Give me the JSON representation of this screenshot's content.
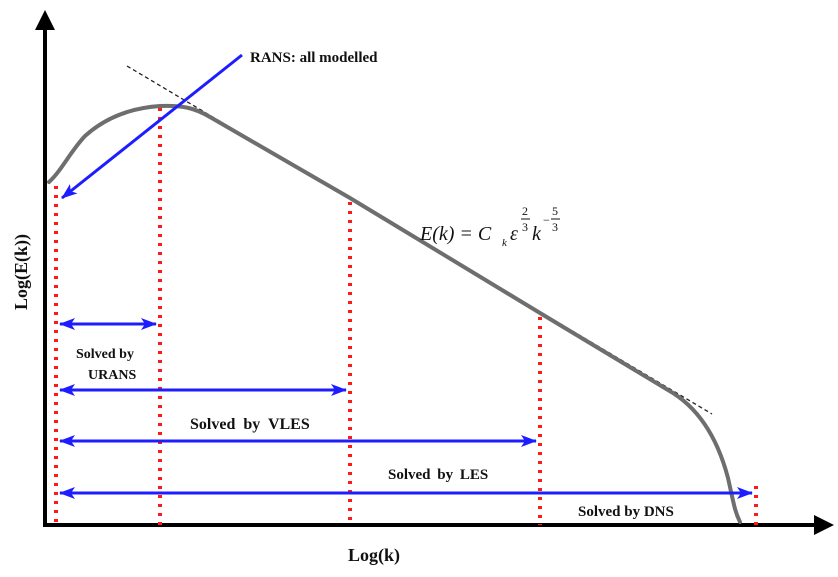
{
  "axes": {
    "x_label": "Log(k)",
    "y_label": "Log(E(k))"
  },
  "annotation": {
    "rans_label": "RANS: all modelled"
  },
  "equation": {
    "lhs": "E(k) = C",
    "c_sub": "k",
    "eps": "ε",
    "eps_exp_num": "2",
    "eps_exp_den": "3",
    "k": "k",
    "k_exp_sign": "−",
    "k_exp_num": "5",
    "k_exp_den": "3"
  },
  "ranges": [
    {
      "label_line1": "Solved by",
      "label_line2": "URANS"
    },
    {
      "label": "Solved by VLES"
    },
    {
      "label": "Solved by LES"
    },
    {
      "label": "Solved by DNS"
    }
  ],
  "colors": {
    "curve": "#6e6e6e",
    "arrows": "#1d1dff",
    "dotted_lines": "#ff1a1a",
    "axes": "#000000",
    "text": "#111111"
  }
}
